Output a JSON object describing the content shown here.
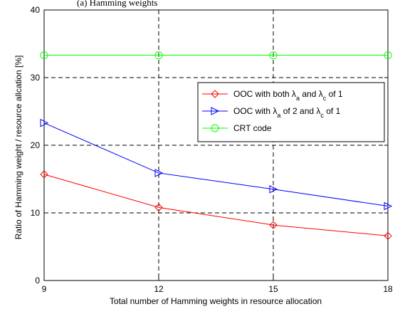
{
  "chart_data": {
    "type": "line",
    "header_fragment": "(a) Hamming weights",
    "xlabel": "Total number of Hamming weights in resource allocation",
    "ylabel": "Ratio of Hamming weight / resource allcation [%]",
    "x": [
      9,
      12,
      15,
      18
    ],
    "xticks": [
      "9",
      "12",
      "15",
      "18"
    ],
    "yticks": [
      "0",
      "10",
      "20",
      "30",
      "40"
    ],
    "xlim": [
      9,
      18
    ],
    "ylim": [
      0,
      40
    ],
    "grid": true,
    "legend_position": "right",
    "series": [
      {
        "name_parts": [
          "OOC with both ",
          "λ",
          "a",
          " and ",
          "λ",
          "c",
          " of 1"
        ],
        "values": [
          15.7,
          10.8,
          8.2,
          6.6
        ],
        "color": "#ff0000",
        "marker": "diamond"
      },
      {
        "name_parts": [
          "OOC with ",
          "λ",
          "a",
          " of 2 and ",
          "λ",
          "c",
          " of 1"
        ],
        "values": [
          23.3,
          15.9,
          13.5,
          11.0
        ],
        "color": "#0000ff",
        "marker": "triangle-right"
      },
      {
        "name_parts": [
          "CRT code"
        ],
        "values": [
          33.3,
          33.3,
          33.3,
          33.3
        ],
        "color": "#00ff00",
        "marker": "circle"
      }
    ]
  }
}
